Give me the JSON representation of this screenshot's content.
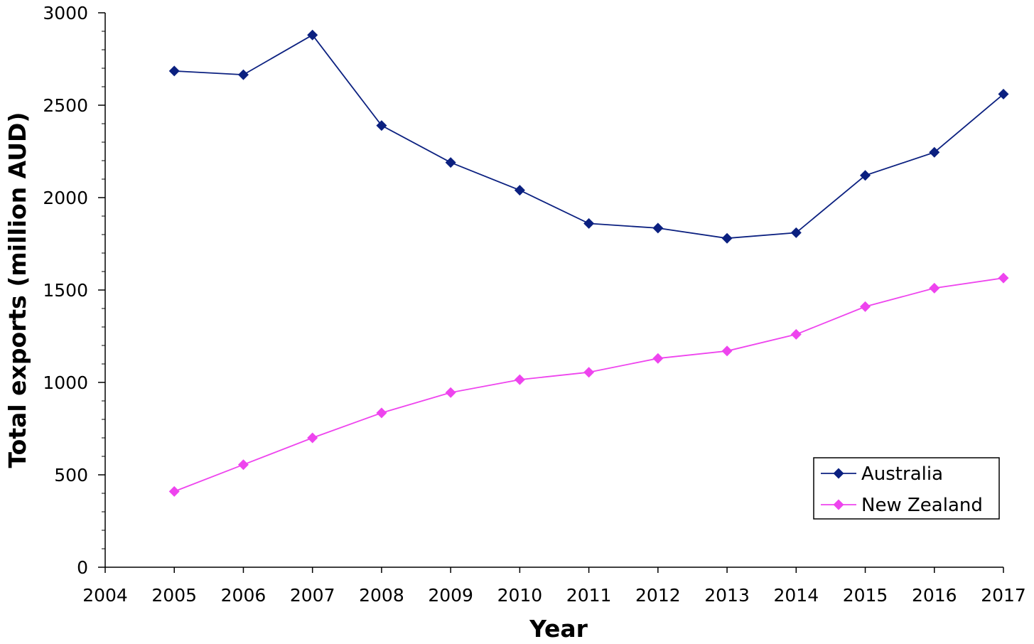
{
  "chart_data": {
    "type": "line",
    "title": "",
    "xlabel": "Year",
    "ylabel": "Total exports (million AUD)",
    "xlim": [
      2004,
      2017
    ],
    "ylim": [
      0,
      3000
    ],
    "x_ticks": [
      2004,
      2005,
      2006,
      2007,
      2008,
      2009,
      2010,
      2011,
      2012,
      2013,
      2014,
      2015,
      2016,
      2017
    ],
    "y_ticks": [
      0,
      500,
      1000,
      1500,
      2000,
      2500,
      3000
    ],
    "y_minor_step": 100,
    "grid": false,
    "legend_position": "bottom-right",
    "x": [
      2005,
      2006,
      2007,
      2008,
      2009,
      2010,
      2011,
      2012,
      2013,
      2014,
      2015,
      2016,
      2017
    ],
    "series": [
      {
        "name": "Australia",
        "color": "#0b2080",
        "marker": "diamond",
        "values": [
          2685,
          2665,
          2880,
          2390,
          2190,
          2040,
          1860,
          1835,
          1780,
          1810,
          2120,
          2245,
          2560
        ]
      },
      {
        "name": "New Zealand",
        "color": "#ee44ee",
        "marker": "diamond",
        "values": [
          410,
          555,
          700,
          835,
          945,
          1015,
          1055,
          1130,
          1170,
          1260,
          1410,
          1510,
          1565
        ]
      }
    ]
  }
}
